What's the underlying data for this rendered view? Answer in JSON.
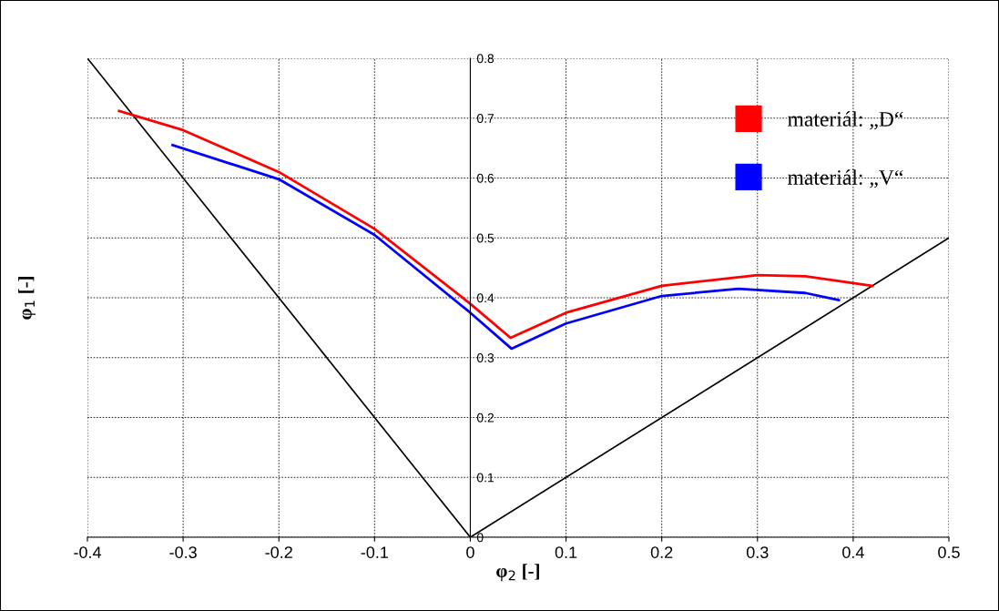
{
  "chart_data": {
    "type": "line",
    "xlabel": "φ$_{2}$ [-]",
    "ylabel": "φ$_{1}$ [-]",
    "xlim": [
      -0.4,
      0.5
    ],
    "xticks": [
      -0.4,
      -0.3,
      -0.2,
      -0.1,
      0,
      0.1,
      0.2,
      0.3,
      0.4,
      0.5
    ],
    "ylim": [
      0,
      0.8
    ],
    "yticks": [
      0,
      0.1,
      0.2,
      0.3,
      0.4,
      0.5,
      0.6,
      0.7,
      0.8
    ],
    "grid": true,
    "legend": "top right",
    "marker": "none",
    "line_style": "solid",
    "series": [
      {
        "color": "#000000",
        "x": [
          -0.4,
          0,
          0.5
        ],
        "values": [
          0.8,
          0,
          0.5
        ]
      },
      {
        "name": "materiál: „D“",
        "color": "#ff0000",
        "x": [
          -0.367,
          -0.3,
          -0.2,
          -0.1,
          0,
          0.042,
          0.1,
          0.2,
          0.3,
          0.35,
          0.42
        ],
        "values": [
          0.712,
          0.68,
          0.61,
          0.515,
          0.39,
          0.333,
          0.375,
          0.42,
          0.438,
          0.436,
          0.42
        ]
      },
      {
        "name": "materiál: „V“",
        "color": "#0000ff",
        "x": [
          -0.311,
          -0.2,
          -0.1,
          0,
          0.043,
          0.1,
          0.2,
          0.28,
          0.35,
          0.385
        ],
        "values": [
          0.655,
          0.598,
          0.505,
          0.375,
          0.315,
          0.357,
          0.403,
          0.415,
          0.408,
          0.396
        ]
      }
    ]
  }
}
